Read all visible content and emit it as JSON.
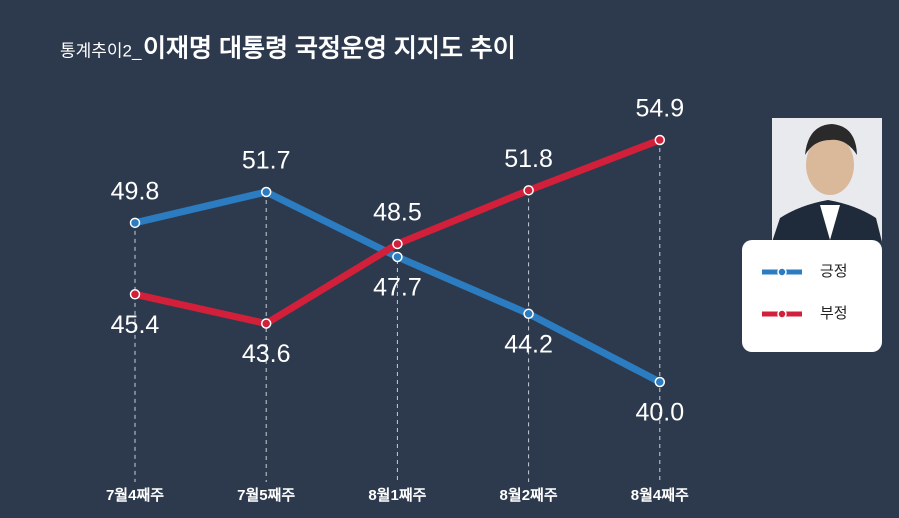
{
  "chart_data": {
    "type": "line",
    "title_prefix": "통계추이2_",
    "title": "이재명 대통령 국정운영 지지도 추이",
    "categories": [
      "7월4째주",
      "7월5째주",
      "8월1째주",
      "8월2째주",
      "8월4째주"
    ],
    "series": [
      {
        "name": "긍정",
        "color": "#2b7cc0",
        "values": [
          49.8,
          51.7,
          47.7,
          44.2,
          40.0
        ],
        "value_labels": [
          "49.8",
          "51.7",
          "47.7",
          "44.2",
          "40.0"
        ]
      },
      {
        "name": "부정",
        "color": "#d2203a",
        "values": [
          45.4,
          43.6,
          48.5,
          51.8,
          54.9
        ],
        "value_labels": [
          "45.4",
          "43.6",
          "48.5",
          "51.8",
          "54.9"
        ]
      }
    ]
  }
}
